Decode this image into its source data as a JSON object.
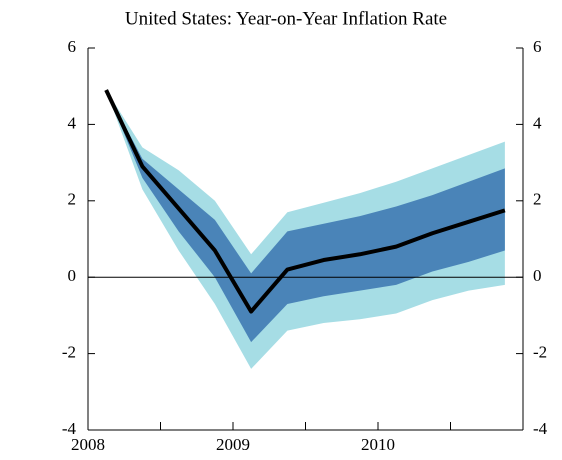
{
  "chart_data": {
    "type": "fan",
    "title": "United States: Year-on-Year Inflation Rate",
    "x": [
      2008.125,
      2008.375,
      2008.625,
      2008.875,
      2009.125,
      2009.375,
      2009.625,
      2009.875,
      2010.125,
      2010.375,
      2010.625,
      2010.875
    ],
    "xlim": [
      2008,
      2011
    ],
    "xticks": [
      2008,
      2009,
      2010
    ],
    "xminor_ticks": [
      2008.5,
      2009.5,
      2010.5
    ],
    "ylim": [
      -4,
      6
    ],
    "yticks": [
      -4,
      -2,
      0,
      2,
      4,
      6
    ],
    "y2lim": [
      -4,
      6
    ],
    "y2ticks": [
      -4,
      -2,
      0,
      2,
      4,
      6
    ],
    "zero_line": true,
    "bands": [
      {
        "color": "#a6dde5",
        "lower": [
          4.9,
          2.3,
          0.7,
          -0.7,
          -2.4,
          -1.4,
          -1.2,
          -1.1,
          -0.95,
          -0.6,
          -0.35,
          -0.2
        ],
        "upper": [
          4.9,
          3.4,
          2.8,
          2.0,
          0.6,
          1.7,
          1.95,
          2.2,
          2.5,
          2.85,
          3.2,
          3.55
        ]
      },
      {
        "color": "#4a84b8",
        "lower": [
          4.9,
          2.6,
          1.2,
          0.0,
          -1.7,
          -0.7,
          -0.5,
          -0.35,
          -0.2,
          0.15,
          0.4,
          0.7
        ],
        "upper": [
          4.9,
          3.1,
          2.3,
          1.5,
          0.1,
          1.2,
          1.4,
          1.6,
          1.85,
          2.15,
          2.5,
          2.85
        ]
      }
    ],
    "series": [
      {
        "color": "#000000",
        "values": [
          4.9,
          2.9,
          1.8,
          0.7,
          -0.9,
          0.2,
          0.45,
          0.6,
          0.8,
          1.15,
          1.45,
          1.75
        ]
      }
    ]
  }
}
